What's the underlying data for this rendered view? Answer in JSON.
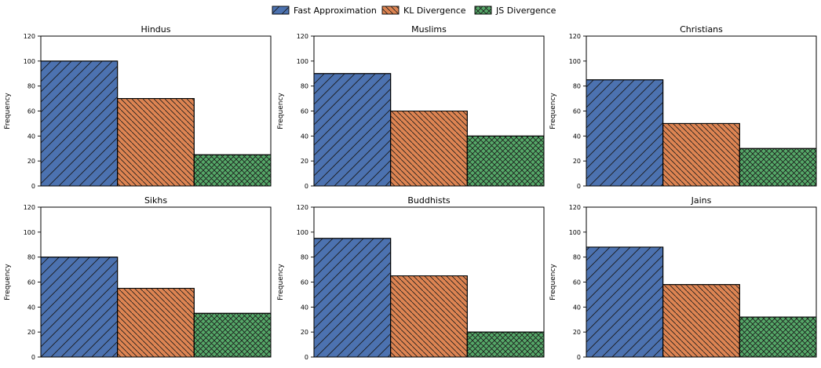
{
  "chart_data": [
    {
      "type": "bar",
      "title": "Hindus",
      "categories": [
        "Fast Approximation",
        "KL Divergence",
        "JS Divergence"
      ],
      "values": [
        100,
        70,
        25
      ],
      "xlabel": "",
      "ylabel": "Frequency",
      "ylim": [
        0,
        120
      ],
      "yticks": [
        0,
        20,
        40,
        60,
        80,
        100,
        120
      ]
    },
    {
      "type": "bar",
      "title": "Muslims",
      "categories": [
        "Fast Approximation",
        "KL Divergence",
        "JS Divergence"
      ],
      "values": [
        90,
        60,
        40
      ],
      "xlabel": "",
      "ylabel": "Frequency",
      "ylim": [
        0,
        120
      ],
      "yticks": [
        0,
        20,
        40,
        60,
        80,
        100,
        120
      ]
    },
    {
      "type": "bar",
      "title": "Christians",
      "categories": [
        "Fast Approximation",
        "KL Divergence",
        "JS Divergence"
      ],
      "values": [
        85,
        50,
        30
      ],
      "xlabel": "",
      "ylabel": "Frequency",
      "ylim": [
        0,
        120
      ],
      "yticks": [
        0,
        20,
        40,
        60,
        80,
        100,
        120
      ]
    },
    {
      "type": "bar",
      "title": "Sikhs",
      "categories": [
        "Fast Approximation",
        "KL Divergence",
        "JS Divergence"
      ],
      "values": [
        80,
        55,
        35
      ],
      "xlabel": "",
      "ylabel": "Frequency",
      "ylim": [
        0,
        120
      ],
      "yticks": [
        0,
        20,
        40,
        60,
        80,
        100,
        120
      ]
    },
    {
      "type": "bar",
      "title": "Buddhists",
      "categories": [
        "Fast Approximation",
        "KL Divergence",
        "JS Divergence"
      ],
      "values": [
        95,
        65,
        20
      ],
      "xlabel": "",
      "ylabel": "Frequency",
      "ylim": [
        0,
        120
      ],
      "yticks": [
        0,
        20,
        40,
        60,
        80,
        100,
        120
      ]
    },
    {
      "type": "bar",
      "title": "Jains",
      "categories": [
        "Fast Approximation",
        "KL Divergence",
        "JS Divergence"
      ],
      "values": [
        88,
        58,
        32
      ],
      "xlabel": "",
      "ylabel": "Frequency",
      "ylim": [
        0,
        120
      ],
      "yticks": [
        0,
        20,
        40,
        60,
        80,
        100,
        120
      ]
    }
  ],
  "legend": {
    "placement": "top-center",
    "entries": [
      {
        "label": "Fast Approximation",
        "color": "#4c72b0",
        "hatch": "diagonal"
      },
      {
        "label": "KL Divergence",
        "color": "#dd8452",
        "hatch": "back-diagonal"
      },
      {
        "label": "JS Divergence",
        "color": "#55a868",
        "hatch": "cross"
      }
    ]
  }
}
